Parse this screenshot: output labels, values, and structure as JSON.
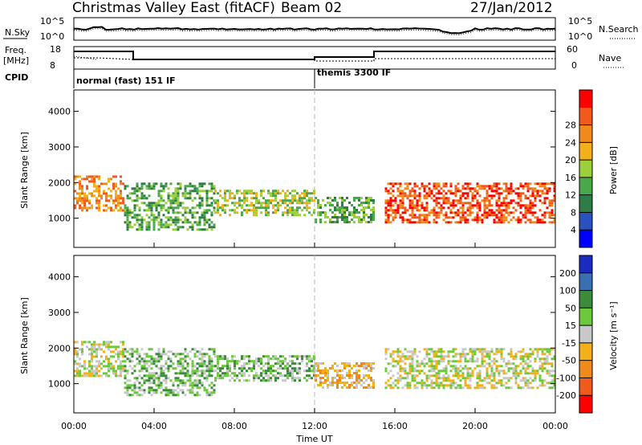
{
  "header": {
    "title": "Christmas Valley East (fitACF)",
    "beam": "Beam 02",
    "date": "27/Jan/2012"
  },
  "status_panel": {
    "nsky_label": "N.Sky",
    "nsearch_label": "N.Search",
    "noise_ticks": [
      "10^5",
      "10^0"
    ],
    "freq_label_line1": "Freq.",
    "freq_label_line2": "[MHz]",
    "freq_ticks": [
      "18",
      "8"
    ],
    "nave_label": "Nave",
    "nave_ticks": [
      "60",
      "0"
    ],
    "cpid_label": "CPID",
    "cpid_1": "normal (fast) 151 IF",
    "cpid_2": "themis 3300 IF"
  },
  "x_axis": {
    "label": "Time UT",
    "ticks": [
      "00:00",
      "04:00",
      "08:00",
      "12:00",
      "16:00",
      "20:00",
      "00:00"
    ]
  },
  "chart_data": [
    {
      "type": "heatmap",
      "ylabel": "Slant Range [km]",
      "xlabel": "Time UT",
      "x_range_hours": [
        0,
        24
      ],
      "ylim": [
        180,
        4600
      ],
      "y_ticks": [
        1000,
        2000,
        3000,
        4000
      ],
      "colorbar": {
        "label": "Power [dB]",
        "ticks": [
          4,
          8,
          12,
          16,
          20,
          24,
          28
        ],
        "colors": [
          "#0000ff",
          "#2a52be",
          "#2e7d46",
          "#4aa84a",
          "#9ccf3c",
          "#f2b019",
          "#f08a1a",
          "#f05a1a",
          "#ff0000"
        ]
      },
      "features": [
        {
          "hours": [
            0,
            2.5
          ],
          "range_km": [
            1200,
            2200
          ],
          "level_db": 22
        },
        {
          "hours": [
            2.5,
            7
          ],
          "range_km": [
            700,
            2000
          ],
          "level_db": 10
        },
        {
          "hours": [
            7,
            12
          ],
          "range_km": [
            1100,
            1800
          ],
          "level_db": 14
        },
        {
          "hours": [
            12,
            15
          ],
          "range_km": [
            900,
            1600
          ],
          "level_db": 12
        },
        {
          "hours": [
            15.5,
            24
          ],
          "range_km": [
            900,
            2000
          ],
          "level_db": 26
        }
      ]
    },
    {
      "type": "heatmap",
      "ylabel": "Slant Range [km]",
      "xlabel": "Time UT",
      "x_range_hours": [
        0,
        24
      ],
      "ylim": [
        180,
        4600
      ],
      "y_ticks": [
        1000,
        2000,
        3000,
        4000
      ],
      "colorbar": {
        "label": "Velocity [m s⁻¹]",
        "ticks": [
          200,
          100,
          50,
          15,
          -15,
          -50,
          -100,
          -200
        ],
        "colors": [
          "#1a2bbf",
          "#3a6fb0",
          "#3c8a3c",
          "#6cc83c",
          "#c8c8c8",
          "#f2b019",
          "#f08a1a",
          "#f05a1a",
          "#ff0000"
        ]
      },
      "features": [
        {
          "hours": [
            0,
            2.5
          ],
          "range_km": [
            1200,
            2200
          ],
          "velocity": 0
        },
        {
          "hours": [
            2.5,
            7
          ],
          "range_km": [
            700,
            2000
          ],
          "velocity": 40
        },
        {
          "hours": [
            7,
            12
          ],
          "range_km": [
            1100,
            1800
          ],
          "velocity": 30
        },
        {
          "hours": [
            12,
            15
          ],
          "range_km": [
            900,
            1600
          ],
          "velocity": -40
        },
        {
          "hours": [
            15.5,
            24
          ],
          "range_km": [
            900,
            2000
          ],
          "velocity": 0
        }
      ]
    }
  ]
}
